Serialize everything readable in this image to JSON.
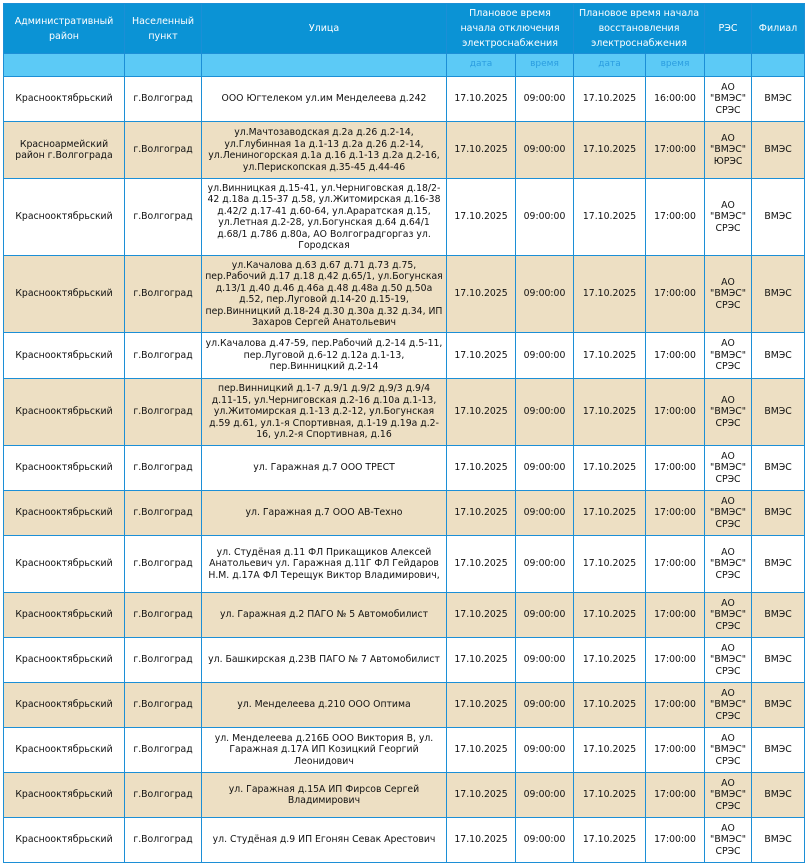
{
  "colors": {
    "header": "#0b93d5",
    "subheader": "#5ccaf6",
    "row_alt": "#eddfc3",
    "border": "#1c8fd6"
  },
  "headers": {
    "district": "Административный район",
    "locality": "Населенный пункт",
    "street": "Улица",
    "off": "Плановое время начала отключения электроснабжения",
    "on": "Плановое время начала восстановления электроснабжения",
    "res": "РЭС",
    "branch": "Филиал"
  },
  "sub": {
    "off_date": "дата",
    "off_time": "время",
    "on_date": "дата",
    "on_time": "время"
  },
  "rows": [
    {
      "district": "Краснооктябрьский",
      "locality": "г.Волгоград",
      "street": "ООО Югтелеком ул.им Менделеева д.242",
      "off_date": "17.10.2025",
      "off_time": "09:00:00",
      "on_date": "17.10.2025",
      "on_time": "16:00:00",
      "res": "АО \"ВМЭС\" СРЭС",
      "branch": "ВМЭС"
    },
    {
      "district": "Красноармейский район г.Волгограда",
      "locality": "г.Волгоград",
      "street": "ул.Мачтозаводская д.2а д.26 д.2-14, ул.Глубинная 1а д.1-13 д.2а д.26 д.2-14, ул.Лениногорская д.1а д.16 д.1-13 д.2а д.2-16, ул.Перископская д.35-45 д.44-46",
      "off_date": "17.10.2025",
      "off_time": "09:00:00",
      "on_date": "17.10.2025",
      "on_time": "17:00:00",
      "res": "АО \"ВМЭС\" ЮРЭС",
      "branch": "ВМЭС"
    },
    {
      "district": "Краснооктябрьский",
      "locality": "г.Волгоград",
      "street": "ул.Винницкая д.15-41, ул.Черниговская д.18/2-42 д.18а д.15-37 д.58, ул.Житомирская д.16-38 д.42/2 д.17-41 д.60-64, ул.Араратская д.15, ул.Летная д.2-28, ул.Богунская д.64 д.64/1 д.68/1 д.786 д.80а, АО Волгоградгоргаз ул. Городская",
      "off_date": "17.10.2025",
      "off_time": "09:00:00",
      "on_date": "17.10.2025",
      "on_time": "17:00:00",
      "res": "АО \"ВМЭС\" СРЭС",
      "branch": "ВМЭС"
    },
    {
      "district": "Краснооктябрьский",
      "locality": "г.Волгоград",
      "street": "ул.Качалова д.63 д.67 д.71 д.73 д.75, пер.Рабочий д.17 д.18 д.42 д.65/1, ул.Богунская д.13/1 д.40 д.46 д.46а д.48 д.48а д.50 д.50а д.52, пер.Луговой д.14-20 д.15-19, пер.Винницкий д.18-24 д.30 д.30а д.32 д.34, ИП Захаров Сергей Анатольевич",
      "off_date": "17.10.2025",
      "off_time": "09:00:00",
      "on_date": "17.10.2025",
      "on_time": "17:00:00",
      "res": "АО \"ВМЭС\" СРЭС",
      "branch": "ВМЭС"
    },
    {
      "district": "Краснооктябрьский",
      "locality": "г.Волгоград",
      "street": "ул.Качалова д.47-59, пер.Рабочий д.2-14 д.5-11, пер.Луговой д.6-12 д.12а д.1-13, пер.Винницкий д.2-14",
      "off_date": "17.10.2025",
      "off_time": "09:00:00",
      "on_date": "17.10.2025",
      "on_time": "17:00:00",
      "res": "АО \"ВМЭС\" СРЭС",
      "branch": "ВМЭС"
    },
    {
      "district": "Краснооктябрьский",
      "locality": "г.Волгоград",
      "street": "пер.Винницкий д.1-7 д.9/1 д.9/2 д.9/3 д.9/4 д.11-15, ул.Черниговская д.2-16 д.10а д.1-13, ул.Житомирская д.1-13 д.2-12, ул.Богунская д.59 д.61, ул.1-я Спортивная, д.1-19 д.19а д.2-16, ул.2-я Спортивная, д.16",
      "off_date": "17.10.2025",
      "off_time": "09:00:00",
      "on_date": "17.10.2025",
      "on_time": "17:00:00",
      "res": "АО \"ВМЭС\" СРЭС",
      "branch": "ВМЭС"
    },
    {
      "district": "Краснооктябрьский",
      "locality": "г.Волгоград",
      "street": "ул. Гаражная д.7 ООО ТРЕСТ",
      "off_date": "17.10.2025",
      "off_time": "09:00:00",
      "on_date": "17.10.2025",
      "on_time": "17:00:00",
      "res": "АО \"ВМЭС\" СРЭС",
      "branch": "ВМЭС"
    },
    {
      "district": "Краснооктябрьский",
      "locality": "г.Волгоград",
      "street": "ул. Гаражная д.7 ООО АВ-Техно",
      "off_date": "17.10.2025",
      "off_time": "09:00:00",
      "on_date": "17.10.2025",
      "on_time": "17:00:00",
      "res": "АО \"ВМЭС\" СРЭС",
      "branch": "ВМЭС"
    },
    {
      "district": "Краснооктябрьский",
      "locality": "г.Волгоград",
      "street": "ул. Студёная д.11 ФЛ Прикащиков Алексей Анатольевич ул. Гаражная д.11Г ФЛ Гейдаров Н.М. д.17А ФЛ Терещук Виктор Владимирович,",
      "off_date": "17.10.2025",
      "off_time": "09:00:00",
      "on_date": "17.10.2025",
      "on_time": "17:00:00",
      "res": "АО \"ВМЭС\" СРЭС",
      "branch": "ВМЭС"
    },
    {
      "district": "Краснооктябрьский",
      "locality": "г.Волгоград",
      "street": "ул. Гаражная д.2 ПАГО № 5 Автомобилист",
      "off_date": "17.10.2025",
      "off_time": "09:00:00",
      "on_date": "17.10.2025",
      "on_time": "17:00:00",
      "res": "АО \"ВМЭС\" СРЭС",
      "branch": "ВМЭС"
    },
    {
      "district": "Краснооктябрьский",
      "locality": "г.Волгоград",
      "street": "ул. Башкирская д.23В ПАГО № 7 Автомобилист",
      "off_date": "17.10.2025",
      "off_time": "09:00:00",
      "on_date": "17.10.2025",
      "on_time": "17:00:00",
      "res": "АО \"ВМЭС\" СРЭС",
      "branch": "ВМЭС"
    },
    {
      "district": "Краснооктябрьский",
      "locality": "г.Волгоград",
      "street": "ул. Менделеева д.210 ООО Оптима",
      "off_date": "17.10.2025",
      "off_time": "09:00:00",
      "on_date": "17.10.2025",
      "on_time": "17:00:00",
      "res": "АО \"ВМЭС\" СРЭС",
      "branch": "ВМЭС"
    },
    {
      "district": "Краснооктябрьский",
      "locality": "г.Волгоград",
      "street": "ул. Менделеева д.216Б ООО Виктория В, ул. Гаражная д.17А ИП Козицкий Георгий Леонидович",
      "off_date": "17.10.2025",
      "off_time": "09:00:00",
      "on_date": "17.10.2025",
      "on_time": "17:00:00",
      "res": "АО \"ВМЭС\" СРЭС",
      "branch": "ВМЭС"
    },
    {
      "district": "Краснооктябрьский",
      "locality": "г.Волгоград",
      "street": "ул. Гаражная д.15А ИП Фирсов Сергей Владимирович",
      "off_date": "17.10.2025",
      "off_time": "09:00:00",
      "on_date": "17.10.2025",
      "on_time": "17:00:00",
      "res": "АО \"ВМЭС\" СРЭС",
      "branch": "ВМЭС"
    },
    {
      "district": "Краснооктябрьский",
      "locality": "г.Волгоград",
      "street": "ул. Студёная д.9 ИП Егонян Севак Арестович",
      "off_date": "17.10.2025",
      "off_time": "09:00:00",
      "on_date": "17.10.2025",
      "on_time": "17:00:00",
      "res": "АО \"ВМЭС\" СРЭС",
      "branch": "ВМЭС"
    }
  ]
}
